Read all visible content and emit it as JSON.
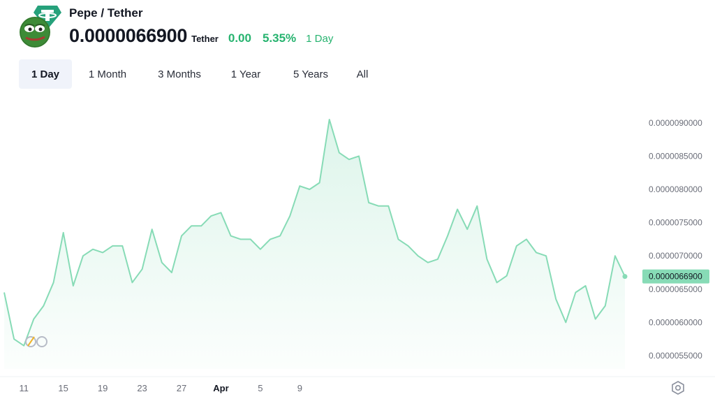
{
  "header": {
    "pair_title": "Pepe / Tether",
    "price": "0.0000066900",
    "quote_label": "Tether",
    "change_abs": "0.00",
    "change_pct": "5.35%",
    "change_period": "1 Day",
    "logo_icon": "pepe-avatar-icon",
    "badge_icon": "tether-badge-icon"
  },
  "ranges": [
    {
      "label": "1 Day",
      "active": true
    },
    {
      "label": "1 Month",
      "active": false
    },
    {
      "label": "3 Months",
      "active": false
    },
    {
      "label": "1 Year",
      "active": false
    },
    {
      "label": "5 Years",
      "active": false
    },
    {
      "label": "All",
      "active": false
    }
  ],
  "colors": {
    "line": "#87dbb6",
    "area": "#e9f8f1",
    "positive": "#26b36f",
    "price_tag_bg": "#87dbb6",
    "axis_text": "#6a6d78"
  },
  "chart_data": {
    "type": "area",
    "x_ticks": [
      "11",
      "15",
      "19",
      "23",
      "27",
      "Apr",
      "5",
      "9"
    ],
    "y_ticks": [
      "0.0000055000",
      "0.0000060000",
      "0.0000065000",
      "0.0000070000",
      "0.0000075000",
      "0.0000080000",
      "0.0000085000",
      "0.0000090000"
    ],
    "ylim": [
      5.3e-06,
      9.25e-06
    ],
    "last_value_label": "0.0000066900",
    "grid": false,
    "series": [
      {
        "x": [
          "Mar 10",
          "Mar 10.5",
          "Mar 11",
          "Mar 11.5",
          "Mar 12",
          "Mar 12.5",
          "Mar 13",
          "Mar 13.5",
          "Mar 14",
          "Mar 14.5",
          "Mar 15",
          "Mar 15.5",
          "Mar 16",
          "Mar 16.5",
          "Mar 17",
          "Mar 17.5",
          "Mar 18",
          "Mar 18.5",
          "Mar 19",
          "Mar 19.5",
          "Mar 20",
          "Mar 20.5",
          "Mar 21",
          "Mar 21.5",
          "Mar 22",
          "Mar 22.5",
          "Mar 23",
          "Mar 23.5",
          "Mar 24",
          "Mar 24.5",
          "Mar 25",
          "Mar 25.5",
          "Mar 26",
          "Mar 26.5",
          "Mar 27",
          "Mar 27.5",
          "Mar 28",
          "Mar 28.5",
          "Mar 29",
          "Mar 29.5",
          "Mar 30",
          "Mar 30.5",
          "Mar 31",
          "Mar 31.5",
          "Apr 1",
          "Apr 1.5",
          "Apr 2",
          "Apr 2.5",
          "Apr 3",
          "Apr 3.5",
          "Apr 4",
          "Apr 4.5",
          "Apr 5",
          "Apr 5.5",
          "Apr 6",
          "Apr 6.5",
          "Apr 7",
          "Apr 7.5",
          "Apr 8",
          "Apr 8.5",
          "Apr 9",
          "Apr 9.5",
          "Apr 10",
          "Apr 10.5"
        ],
        "values": [
          6.45e-06,
          5.75e-06,
          5.65e-06,
          6.05e-06,
          6.25e-06,
          6.6e-06,
          7.35e-06,
          6.55e-06,
          7e-06,
          7.1e-06,
          7.05e-06,
          7.15e-06,
          7.15e-06,
          6.6e-06,
          6.8e-06,
          7.4e-06,
          6.9e-06,
          6.75e-06,
          7.3e-06,
          7.45e-06,
          7.45e-06,
          7.6e-06,
          7.65e-06,
          7.3e-06,
          7.25e-06,
          7.25e-06,
          7.1e-06,
          7.25e-06,
          7.3e-06,
          7.6e-06,
          8.05e-06,
          8e-06,
          8.1e-06,
          9.05e-06,
          8.55e-06,
          8.45e-06,
          8.5e-06,
          7.8e-06,
          7.75e-06,
          7.75e-06,
          7.25e-06,
          7.15e-06,
          7e-06,
          6.9e-06,
          6.95e-06,
          7.3e-06,
          7.7e-06,
          7.4e-06,
          7.75e-06,
          6.95e-06,
          6.6e-06,
          6.7e-06,
          7.15e-06,
          7.25e-06,
          7.05e-06,
          7e-06,
          6.35e-06,
          6e-06,
          6.45e-06,
          6.55e-06,
          6.05e-06,
          6.25e-06,
          7e-06,
          6.69e-06
        ]
      }
    ]
  }
}
